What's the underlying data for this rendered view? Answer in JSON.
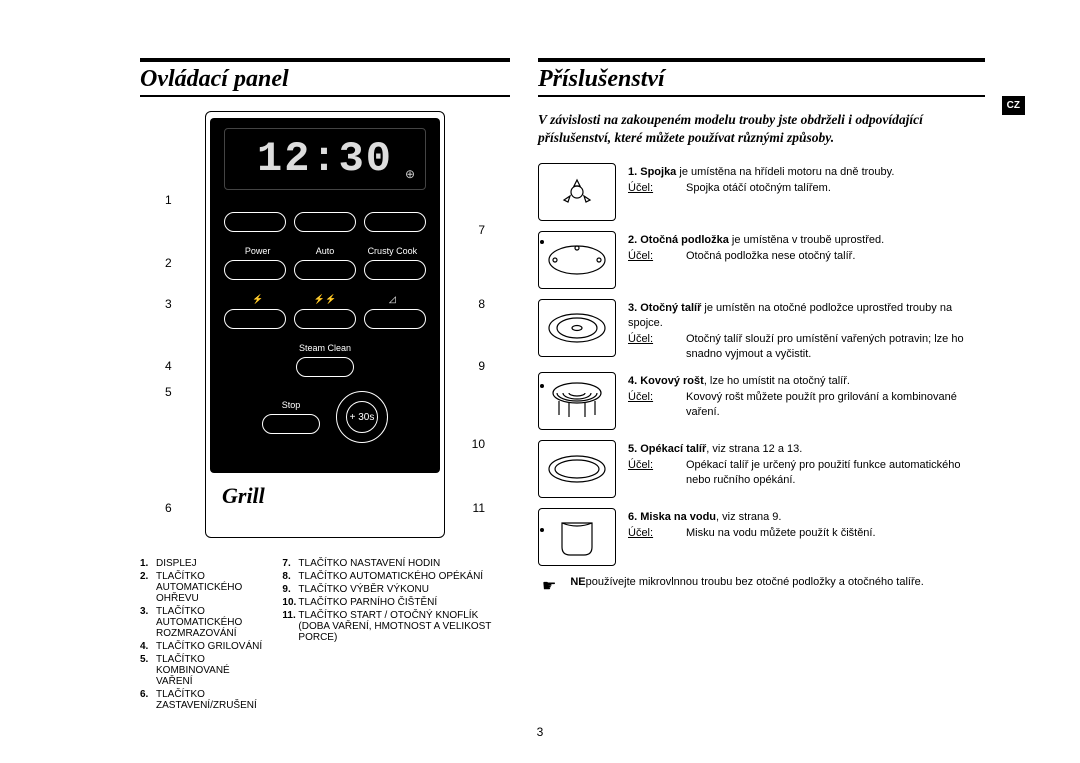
{
  "left": {
    "title": "Ovládací panel",
    "display_time": "12:30",
    "button_icon_rows": [
      [
        "Power",
        "Auto",
        "Crusty Cook"
      ],
      [
        "⚡",
        "⚡⚡",
        "◿"
      ],
      [
        "",
        "Steam Clean",
        ""
      ],
      [
        "Stop",
        "+ 30s",
        ""
      ]
    ],
    "grill_logo": "Grill",
    "callouts_left": [
      "1",
      "2",
      "3",
      "4",
      "5",
      "6"
    ],
    "callouts_right": [
      "7",
      "8",
      "9",
      "10",
      "11"
    ],
    "legend_left": [
      {
        "n": "1.",
        "t": "DISPLEJ"
      },
      {
        "n": "2.",
        "t": "TLAČÍTKO AUTOMATICKÉHO OHŘEVU"
      },
      {
        "n": "3.",
        "t": "TLAČÍTKO AUTOMATICKÉHO ROZMRAZOVÁNÍ"
      },
      {
        "n": "4.",
        "t": "TLAČÍTKO GRILOVÁNÍ"
      },
      {
        "n": "5.",
        "t": "TLAČÍTKO KOMBINOVANÉ VAŘENÍ"
      },
      {
        "n": "6.",
        "t": "TLAČÍTKO ZASTAVENÍ/ZRUŠENÍ"
      }
    ],
    "legend_right": [
      {
        "n": "7.",
        "t": "TLAČÍTKO NASTAVENÍ HODIN"
      },
      {
        "n": "8.",
        "t": "TLAČÍTKO AUTOMATICKÉHO OPÉKÁNÍ"
      },
      {
        "n": "9.",
        "t": "TLAČÍTKO VÝBĚR VÝKONU"
      },
      {
        "n": "10.",
        "t": "TLAČÍTKO PARNÍHO ČIŠTĚNÍ"
      },
      {
        "n": "11.",
        "t": "TLAČÍTKO START / OTOČNÝ KNOFLÍK (doba vaření, hmotnost a velikost porce)"
      }
    ]
  },
  "right": {
    "title": "Příslušenství",
    "lang_tab": "CZ",
    "intro": "V závislosti na zakoupeném modelu trouby jste obdrželi i odpovídající příslušenství, které můžete používat různými způsoby.",
    "purpose_label": "Účel:",
    "accessories": [
      {
        "n": "1.",
        "name": "Spojka",
        "desc": " je umístěna na hřídeli motoru na dně trouby.",
        "purpose": "Spojka otáčí otočným talířem."
      },
      {
        "n": "2.",
        "name": "Otočná podložka",
        "desc": " je umístěna v troubě uprostřed.",
        "purpose": "Otočná podložka nese otočný talíř."
      },
      {
        "n": "3.",
        "name": "Otočný talíř",
        "desc": " je umístěn na otočné podložce uprostřed trouby na spojce.",
        "purpose": "Otočný talíř slouží pro umístění vařených potravin; lze ho snadno vyjmout a vyčistit."
      },
      {
        "n": "4.",
        "name": "Kovový rošt",
        "desc": ", lze ho umístit na otočný talíř.",
        "purpose": "Kovový rošt můžete použít pro grilování a kombinované vaření."
      },
      {
        "n": "5.",
        "name": "Opékací talíř",
        "desc": ", viz strana 12 a 13.",
        "purpose": "Opékací talíř je určený pro použití funkce automatického nebo ručního opékání."
      },
      {
        "n": "6.",
        "name": "Miska na vodu",
        "desc": ", viz strana 9.",
        "purpose": "Misku na vodu můžete použít k čištění."
      }
    ],
    "note_bold": "NE",
    "note_rest": "používejte mikrovlnnou troubu bez otočné podložky a otočného talíře."
  },
  "page_number": "3"
}
